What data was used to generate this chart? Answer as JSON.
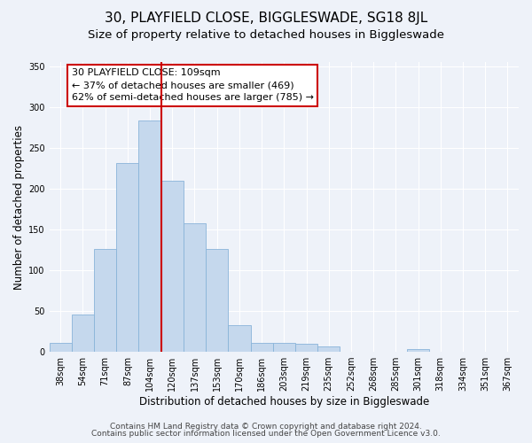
{
  "title": "30, PLAYFIELD CLOSE, BIGGLESWADE, SG18 8JL",
  "subtitle": "Size of property relative to detached houses in Biggleswade",
  "xlabel": "Distribution of detached houses by size in Biggleswade",
  "ylabel": "Number of detached properties",
  "bin_labels": [
    "38sqm",
    "54sqm",
    "71sqm",
    "87sqm",
    "104sqm",
    "120sqm",
    "137sqm",
    "153sqm",
    "170sqm",
    "186sqm",
    "203sqm",
    "219sqm",
    "235sqm",
    "252sqm",
    "268sqm",
    "285sqm",
    "301sqm",
    "318sqm",
    "334sqm",
    "351sqm",
    "367sqm"
  ],
  "bar_heights": [
    11,
    46,
    126,
    231,
    283,
    210,
    157,
    126,
    33,
    11,
    11,
    10,
    7,
    0,
    0,
    0,
    3,
    0,
    0,
    0,
    0
  ],
  "bar_color": "#c5d8ed",
  "bar_edgecolor": "#89b4d9",
  "vline_x": 4.5,
  "vline_color": "#cc0000",
  "annotation_text": "30 PLAYFIELD CLOSE: 109sqm\n← 37% of detached houses are smaller (469)\n62% of semi-detached houses are larger (785) →",
  "annotation_box_color": "#ffffff",
  "annotation_box_edgecolor": "#cc0000",
  "ylim": [
    0,
    355
  ],
  "yticks": [
    0,
    50,
    100,
    150,
    200,
    250,
    300,
    350
  ],
  "footer_line1": "Contains HM Land Registry data © Crown copyright and database right 2024.",
  "footer_line2": "Contains public sector information licensed under the Open Government Licence v3.0.",
  "background_color": "#eef2f9",
  "grid_color": "#ffffff",
  "title_fontsize": 11,
  "subtitle_fontsize": 9.5,
  "axis_label_fontsize": 8.5,
  "tick_fontsize": 7,
  "footer_fontsize": 6.5,
  "annotation_fontsize": 8
}
